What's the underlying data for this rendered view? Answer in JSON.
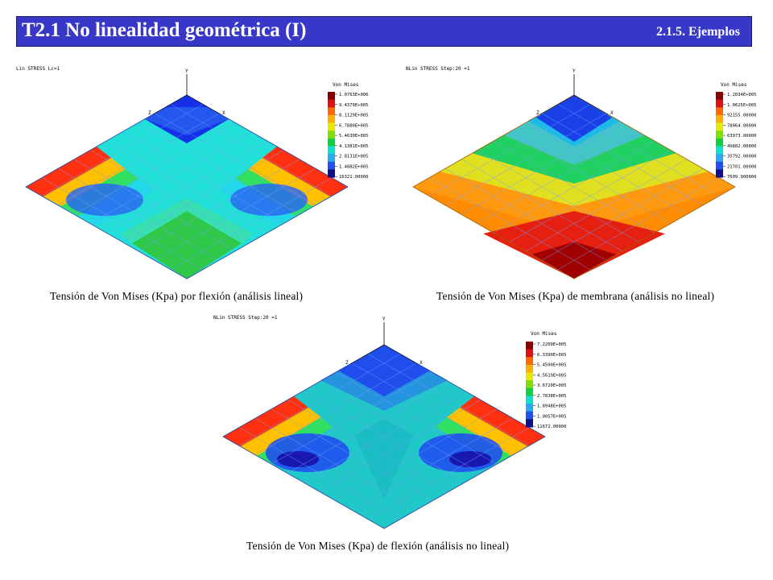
{
  "header": {
    "title": "T2.1 No linealidad geométrica (I)",
    "section": "2.1.5. Ejemplos"
  },
  "panels": [
    {
      "plot_title": "Lin STRESS Lc=1",
      "legend_title": "Von Mises",
      "legend_values": [
        "1.0763E+006",
        "9.4379E+005",
        "8.1129E+005",
        "6.7880E+005",
        "5.4630E+005",
        "4.1381E+005",
        "2.8131E+005",
        "1.4882E+005",
        "16321.00000"
      ],
      "caption": "Tensión de Von Mises (Kpa) por flexión (análisis lineal)",
      "axis_labels": {
        "y": "Y",
        "z": "Z",
        "x": "X"
      }
    },
    {
      "plot_title": "NLin STRESS Step:20 =1",
      "legend_title": "Von Mises",
      "legend_values": [
        "1.2034E+005",
        "1.0625E+005",
        "92155.00000",
        "78064.00000",
        "63973.00000",
        "49882.00000",
        "35792.00000",
        "21701.00000",
        "7609.900000"
      ],
      "caption": "Tensión de Von Mises (Kpa) de membrana (análisis no lineal)",
      "axis_labels": {
        "y": "Y",
        "z": "Z",
        "x": "X"
      }
    },
    {
      "plot_title": "NLin STRESS Step:20 =1",
      "legend_title": "Von Mises",
      "legend_values": [
        "7.2209E+005",
        "6.3390E+005",
        "5.4500E+005",
        "4.5619E+005",
        "3.6720E+005",
        "2.7838E+005",
        "1.8948E+005",
        "1.0057E+005",
        "11672.00000"
      ],
      "caption": "Tensión de Von Mises (Kpa) de flexión (análisis no lineal)",
      "axis_labels": {
        "y": "Y",
        "z": "Z",
        "x": "X"
      }
    }
  ],
  "colors": {
    "header_bg": "#3737c8",
    "scale": [
      "#8b0000",
      "#e01010",
      "#ff6a00",
      "#ffb000",
      "#e8e800",
      "#7ee000",
      "#10d040",
      "#10e0d0",
      "#2aa8f0",
      "#2050f0",
      "#10108a"
    ]
  }
}
